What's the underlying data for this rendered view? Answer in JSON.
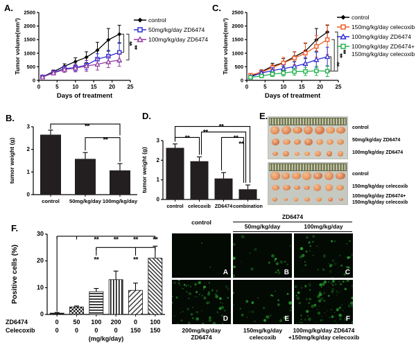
{
  "panel_labels": {
    "a": "A.",
    "b": "B.",
    "c": "C.",
    "d": "D.",
    "e": "E.",
    "f": "F."
  },
  "colors": {
    "black": "#000000",
    "blue": "#2b2bd5",
    "purple": "#93399f",
    "orange": "#f15a29",
    "green": "#22b14c",
    "bar": "#231f20"
  },
  "chart_data": [
    {
      "id": "A",
      "type": "line",
      "xlabel": "Days of treatment",
      "ylabel": "Tumor volume(mm³)",
      "x": [
        1,
        4,
        7,
        10,
        13,
        16,
        19,
        22
      ],
      "xlim": [
        0,
        25
      ],
      "ylim": [
        0,
        2500
      ],
      "xticks": [
        0,
        5,
        10,
        15,
        20,
        25
      ],
      "yticks": [
        0,
        500,
        1000,
        1500,
        2000,
        2500
      ],
      "series": [
        {
          "name": "control",
          "color": "#000000",
          "marker": "diamond",
          "values": [
            130,
            320,
            520,
            690,
            850,
            1110,
            1490,
            1700
          ],
          "errors": [
            40,
            60,
            90,
            140,
            200,
            290,
            420,
            330
          ]
        },
        {
          "name": "50mg/kg/day ZD6474",
          "color": "#2b2bd5",
          "marker": "square",
          "values": [
            125,
            290,
            430,
            470,
            560,
            780,
            890,
            1030
          ],
          "errors": [
            40,
            60,
            100,
            130,
            170,
            200,
            220,
            360
          ]
        },
        {
          "name": "100mg/kg/day ZD6474",
          "color": "#93399f",
          "marker": "triangle",
          "values": [
            120,
            270,
            400,
            450,
            530,
            590,
            680,
            750
          ],
          "errors": [
            40,
            70,
            110,
            140,
            200,
            210,
            210,
            230
          ]
        }
      ],
      "brackets": [
        {
          "x": 23.2,
          "y1": 1700,
          "y2": 1030,
          "label": "**"
        },
        {
          "x": 24.6,
          "y1": 1700,
          "y2": 750,
          "label": "**"
        }
      ]
    },
    {
      "id": "C",
      "type": "line",
      "xlabel": "Days of treatment",
      "ylabel": "Tumor volume(mm³)",
      "x": [
        1,
        4,
        7,
        10,
        13,
        16,
        19,
        22
      ],
      "xlim": [
        0,
        25
      ],
      "ylim": [
        0,
        2500
      ],
      "xticks": [
        0,
        5,
        10,
        15,
        20,
        25
      ],
      "yticks": [
        0,
        500,
        1000,
        1500,
        2000,
        2500
      ],
      "series": [
        {
          "name": "control",
          "color": "#000000",
          "marker": "diamond",
          "values": [
            150,
            320,
            520,
            650,
            870,
            1080,
            1490,
            1780
          ],
          "errors": [
            60,
            70,
            110,
            150,
            180,
            280,
            420,
            250
          ]
        },
        {
          "name": "150mg/kg/day celecoxib",
          "color": "#f15a29",
          "marker": "square",
          "values": [
            190,
            300,
            470,
            640,
            820,
            1000,
            1250,
            1500
          ],
          "errors": [
            60,
            80,
            120,
            210,
            240,
            380,
            400,
            550
          ]
        },
        {
          "name": "100mg/kg/day ZD6474",
          "color": "#2b2bd5",
          "marker": "triangle",
          "values": [
            130,
            270,
            360,
            430,
            510,
            620,
            760,
            870
          ],
          "errors": [
            50,
            70,
            110,
            130,
            170,
            230,
            280,
            350
          ]
        },
        {
          "name": "100mg/kg/day ZD6474+",
          "name2": "150mg/kg/day celecoxib",
          "color": "#22b14c",
          "marker": "square",
          "values": [
            110,
            160,
            230,
            270,
            320,
            330,
            350,
            340
          ],
          "errors": [
            40,
            60,
            90,
            110,
            130,
            150,
            170,
            200
          ]
        }
      ],
      "brackets": [
        {
          "x": 23.0,
          "y1": 870,
          "y2": 340,
          "label": "**"
        },
        {
          "x": 23.9,
          "y1": 1500,
          "y2": 340,
          "label": "**"
        },
        {
          "x": 24.8,
          "y1": 1780,
          "y2": 340,
          "label": "**"
        }
      ]
    },
    {
      "id": "B",
      "type": "bar",
      "ylabel": "tumor weight (g)",
      "ylim": [
        0,
        3
      ],
      "yticks": [
        0,
        1,
        2,
        3
      ],
      "categories": [
        "control",
        "50mg/kg/day",
        "100mg/kg/day"
      ],
      "values": [
        2.65,
        1.58,
        1.07
      ],
      "errors": [
        0.2,
        0.28,
        0.3
      ],
      "annotations": [
        {
          "type": "bracket",
          "i": 0,
          "j": 2,
          "v": 3.12,
          "di": 2.9,
          "dj": 2.62
        },
        {
          "type": "stars",
          "pos": 1.05,
          "v": 2.93,
          "label": "**"
        },
        {
          "type": "bracket",
          "i": 1,
          "j": 2,
          "v": 2.52,
          "di": 1.95,
          "dj": 1.45
        },
        {
          "type": "stars",
          "pos": 1.58,
          "v": 2.33,
          "label": "**"
        }
      ]
    },
    {
      "id": "D",
      "type": "bar",
      "ylabel": "tumor weight (g)",
      "ylim": [
        0,
        3
      ],
      "yticks": [
        0,
        1,
        2,
        3
      ],
      "categories": [
        "control",
        "celecoxib",
        "ZD6474",
        "combination"
      ],
      "values": [
        2.63,
        1.95,
        1.07,
        0.52
      ],
      "errors": [
        0.2,
        0.22,
        0.3,
        0.22
      ],
      "annotations": [
        {
          "type": "bracket",
          "i": 0,
          "j": 3,
          "v": 3.72,
          "di": 2.95,
          "dj": 0.85,
          "oxj": 3
        },
        {
          "type": "stars",
          "pos": 1.9,
          "v": 3.6,
          "label": "**"
        },
        {
          "type": "bracket",
          "i": 1,
          "j": 3,
          "v": 3.44,
          "di": 2.28,
          "dj": 0.85,
          "oxi": 3,
          "oxj": -3
        },
        {
          "type": "stars",
          "pos": 1.25,
          "v": 3.32,
          "label": "**"
        },
        {
          "type": "bracket",
          "i": 0,
          "j": 1,
          "v": 3.16,
          "di": 2.95,
          "dj": 2.28
        },
        {
          "type": "stars",
          "pos": 0.5,
          "v": 3.02,
          "label": "**"
        },
        {
          "type": "bracket",
          "i": 2,
          "j": 3,
          "v": 3.16,
          "di": 1.48,
          "dj": 0.85,
          "oxj": -6,
          "oxi": -3
        },
        {
          "type": "stars",
          "pos": 2.5,
          "v": 3.02,
          "label": "**"
        },
        {
          "type": "stars",
          "pos": 2.72,
          "v": 2.72,
          "label": "**"
        }
      ]
    },
    {
      "id": "F",
      "type": "bar",
      "ylabel": "Positive cells (%)",
      "ylim": [
        0,
        30
      ],
      "yticks": [
        0,
        10,
        20,
        30
      ],
      "values": [
        0.5,
        2.8,
        8.5,
        13,
        9,
        21
      ],
      "errors": [
        0.25,
        0.35,
        1.2,
        3.2,
        2.7,
        4.5
      ],
      "patterns": [
        "solid",
        "checker",
        "hlines",
        "vlines",
        "diag1",
        "diag2"
      ],
      "xaxis_rows": [
        {
          "label": "ZD6474",
          "values": [
            "0",
            "50",
            "100",
            "200",
            "0",
            "100"
          ]
        },
        {
          "label": "Celecoxib",
          "values": [
            "0",
            "0",
            "0",
            "0",
            "150",
            "150"
          ]
        }
      ],
      "xaxis_unit": "(mg/kg/day)",
      "annotations": [
        {
          "type": "hline",
          "i": 0,
          "j": 5,
          "v": 29.2,
          "ticks": true
        },
        {
          "type": "vline",
          "pos": 0,
          "v1": 29.2,
          "v2": 1.15
        },
        {
          "type": "vline",
          "pos": 1,
          "v1": 29.2,
          "v2": 28.0
        },
        {
          "type": "stars",
          "pos": 2,
          "v": 27.2,
          "label": "**"
        },
        {
          "type": "stars",
          "pos": 3,
          "v": 27.2,
          "label": "**"
        },
        {
          "type": "stars",
          "pos": 4,
          "v": 27.2,
          "label": "**"
        },
        {
          "type": "stars",
          "pos": 5,
          "v": 27.2,
          "label": "**"
        },
        {
          "type": "hline",
          "i": 2,
          "j": 5,
          "v": 25.0,
          "ticks": true
        },
        {
          "type": "vline",
          "pos": 2,
          "v1": 25.0,
          "v2": 22.0
        },
        {
          "type": "vline",
          "pos": 4,
          "v1": 25.0,
          "v2": 22.0
        },
        {
          "type": "stars",
          "pos": 2,
          "v": 19.6,
          "label": "**"
        },
        {
          "type": "stars",
          "pos": 4,
          "v": 19.6,
          "label": "**"
        }
      ]
    }
  ],
  "panel_e": {
    "tumors_per_row": 7,
    "row_labels": [
      "control",
      "50mg/kg/day ZD6474",
      "100mg/kg/day ZD6474",
      "control",
      "150mg/kg/day celecoxib",
      "100mg/kg/day ZD6474+",
      "150mg/kg/day celecoxib"
    ],
    "row_sizes": [
      13,
      11,
      8,
      13,
      10,
      7
    ]
  },
  "microscopy": {
    "header_control": "control",
    "header_group": "ZD6474",
    "header_dose1": "50mg/kg/day",
    "header_dose2": "100mg/kg/day",
    "cells": [
      {
        "letter": "A",
        "dots": 2
      },
      {
        "letter": "B",
        "dots": 22
      },
      {
        "letter": "C",
        "dots": 38
      },
      {
        "letter": "D",
        "dots": 70
      },
      {
        "letter": "E",
        "dots": 28
      },
      {
        "letter": "F",
        "dots": 95
      }
    ],
    "captions": [
      [
        "200mg/kg/day",
        "ZD6474"
      ],
      [
        "150mg/kg/day",
        "celecoxib"
      ],
      [
        "100mg/kg/day ZD6474",
        "+150mg/kg/day celecoxib"
      ]
    ]
  }
}
